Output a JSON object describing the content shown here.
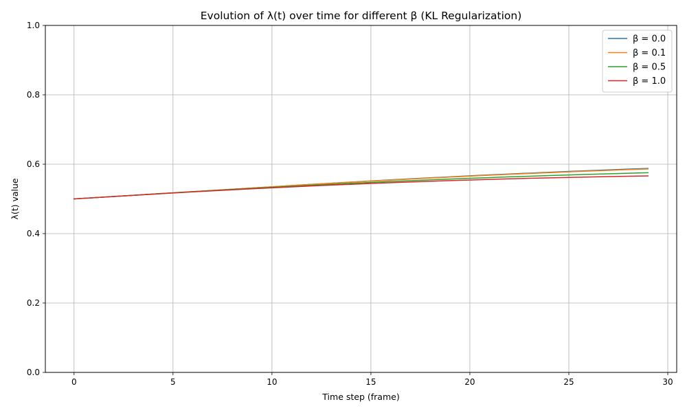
{
  "chart_data": {
    "type": "line",
    "title": "Evolution of λ(t) over time for different β (KL Regularization)",
    "xlabel": "Time step (frame)",
    "ylabel": "λ(t) value",
    "xlim": [
      -1.45,
      30.45
    ],
    "ylim": [
      0.0,
      1.0
    ],
    "x_ticks": [
      0,
      5,
      10,
      15,
      20,
      25,
      30
    ],
    "x_tick_labels": [
      "0",
      "5",
      "10",
      "15",
      "20",
      "25",
      "30"
    ],
    "y_ticks": [
      0.0,
      0.2,
      0.4,
      0.6,
      0.8,
      1.0
    ],
    "y_tick_labels": [
      "0.0",
      "0.2",
      "0.4",
      "0.6",
      "0.8",
      "1.0"
    ],
    "grid": true,
    "legend_position": "top-right",
    "x": [
      0,
      1,
      2,
      3,
      4,
      5,
      6,
      7,
      8,
      9,
      10,
      11,
      12,
      13,
      14,
      15,
      16,
      17,
      18,
      19,
      20,
      21,
      22,
      23,
      24,
      25,
      26,
      27,
      28,
      29
    ],
    "series": [
      {
        "name": "β = 0.0",
        "color": "#1f77b4",
        "values": [
          0.5,
          0.5035,
          0.507,
          0.5105,
          0.514,
          0.5175,
          0.521,
          0.5245,
          0.528,
          0.5315,
          0.535,
          0.5385,
          0.542,
          0.5453,
          0.5486,
          0.5518,
          0.5549,
          0.5579,
          0.5608,
          0.5637,
          0.5665,
          0.5692,
          0.5718,
          0.5743,
          0.5768,
          0.5792,
          0.5815,
          0.5837,
          0.5858,
          0.5879
        ]
      },
      {
        "name": "β = 0.1",
        "color": "#ff7f0e",
        "values": [
          0.5,
          0.5035,
          0.507,
          0.5105,
          0.514,
          0.5175,
          0.521,
          0.5245,
          0.528,
          0.5315,
          0.535,
          0.5385,
          0.5418,
          0.545,
          0.5482,
          0.5513,
          0.5543,
          0.5572,
          0.5601,
          0.5629,
          0.5656,
          0.5682,
          0.5707,
          0.5732,
          0.5756,
          0.5779,
          0.5801,
          0.5822,
          0.5843,
          0.5863
        ]
      },
      {
        "name": "β = 0.5",
        "color": "#2ca02c",
        "values": [
          0.5,
          0.5035,
          0.507,
          0.5105,
          0.514,
          0.5174,
          0.5207,
          0.524,
          0.5272,
          0.5304,
          0.5335,
          0.5365,
          0.5394,
          0.5422,
          0.545,
          0.5476,
          0.5502,
          0.5526,
          0.555,
          0.5572,
          0.5594,
          0.5615,
          0.5635,
          0.5654,
          0.5672,
          0.569,
          0.5707,
          0.5723,
          0.5739,
          0.5754
        ]
      },
      {
        "name": "β = 1.0",
        "color": "#d62728",
        "values": [
          0.5,
          0.5035,
          0.507,
          0.5104,
          0.5137,
          0.517,
          0.5202,
          0.5233,
          0.5263,
          0.5292,
          0.532,
          0.5347,
          0.5373,
          0.5398,
          0.5422,
          0.5445,
          0.5467,
          0.5488,
          0.5508,
          0.5527,
          0.5545,
          0.5562,
          0.5578,
          0.5593,
          0.5607,
          0.562,
          0.5632,
          0.5643,
          0.5653,
          0.5663
        ]
      }
    ]
  }
}
